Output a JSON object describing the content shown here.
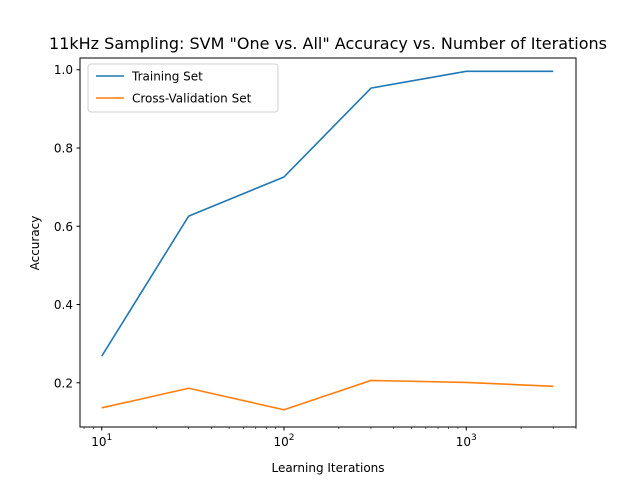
{
  "chart_data": {
    "type": "line",
    "title": "11kHz Sampling: SVM \"One vs. All\" Accuracy vs. Number of Iterations",
    "xlabel": "Learning Iterations",
    "ylabel": "Accuracy",
    "xscale": "log",
    "x": [
      10,
      30,
      100,
      300,
      1000,
      3000
    ],
    "xlim": [
      7.6,
      4000
    ],
    "ylim": [
      0.087,
      1.03
    ],
    "xticks": [
      {
        "value": 10,
        "base": "10",
        "exp": "1"
      },
      {
        "value": 100,
        "base": "10",
        "exp": "2"
      },
      {
        "value": 1000,
        "base": "10",
        "exp": "3"
      }
    ],
    "yticks": [
      {
        "value": 0.2,
        "label": "0.2"
      },
      {
        "value": 0.4,
        "label": "0.4"
      },
      {
        "value": 0.6,
        "label": "0.6"
      },
      {
        "value": 0.8,
        "label": "0.8"
      },
      {
        "value": 1.0,
        "label": "1.0"
      }
    ],
    "series": [
      {
        "name": "Training Set",
        "color": "#1f77b4",
        "values": [
          0.268,
          0.626,
          0.726,
          0.953,
          0.996,
          0.996
        ]
      },
      {
        "name": "Cross-Validation Set",
        "color": "#ff7f0e",
        "values": [
          0.136,
          0.186,
          0.131,
          0.206,
          0.201,
          0.191
        ]
      }
    ],
    "legend": "upper-left",
    "grid": false
  }
}
